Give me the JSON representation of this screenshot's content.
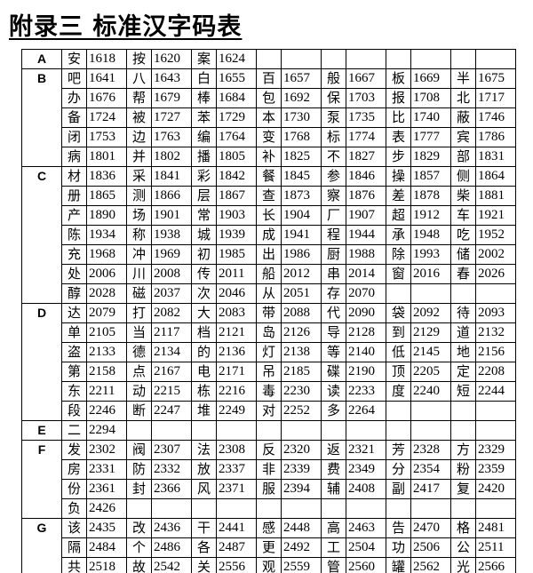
{
  "title": "附录三 标准汉字码表",
  "table": {
    "groups": [
      {
        "letter": "A",
        "rows": [
          [
            "安",
            "1618",
            "按",
            "1620",
            "案",
            "1624"
          ]
        ]
      },
      {
        "letter": "B",
        "rows": [
          [
            "吧",
            "1641",
            "八",
            "1643",
            "白",
            "1655",
            "百",
            "1657",
            "般",
            "1667",
            "板",
            "1669",
            "半",
            "1675"
          ],
          [
            "办",
            "1676",
            "帮",
            "1679",
            "棒",
            "1684",
            "包",
            "1692",
            "保",
            "1703",
            "报",
            "1708",
            "北",
            "1717"
          ],
          [
            "备",
            "1724",
            "被",
            "1727",
            "苯",
            "1729",
            "本",
            "1730",
            "泵",
            "1735",
            "比",
            "1740",
            "蔽",
            "1746"
          ],
          [
            "闭",
            "1753",
            "边",
            "1763",
            "编",
            "1764",
            "变",
            "1768",
            "标",
            "1774",
            "表",
            "1777",
            "宾",
            "1786"
          ],
          [
            "病",
            "1801",
            "并",
            "1802",
            "播",
            "1805",
            "补",
            "1825",
            "不",
            "1827",
            "步",
            "1829",
            "部",
            "1831"
          ]
        ]
      },
      {
        "letter": "C",
        "rows": [
          [
            "材",
            "1836",
            "采",
            "1841",
            "彩",
            "1842",
            "餐",
            "1845",
            "参",
            "1846",
            "操",
            "1857",
            "侧",
            "1864"
          ],
          [
            "册",
            "1865",
            "测",
            "1866",
            "层",
            "1867",
            "查",
            "1873",
            "察",
            "1876",
            "差",
            "1878",
            "柴",
            "1881"
          ],
          [
            "产",
            "1890",
            "场",
            "1901",
            "常",
            "1903",
            "长",
            "1904",
            "厂",
            "1907",
            "超",
            "1912",
            "车",
            "1921"
          ],
          [
            "陈",
            "1934",
            "称",
            "1938",
            "城",
            "1939",
            "成",
            "1941",
            "程",
            "1944",
            "承",
            "1948",
            "吃",
            "1952"
          ],
          [
            "充",
            "1968",
            "冲",
            "1969",
            "初",
            "1985",
            "出",
            "1986",
            "厨",
            "1988",
            "除",
            "1993",
            "储",
            "2002"
          ],
          [
            "处",
            "2006",
            "川",
            "2008",
            "传",
            "2011",
            "船",
            "2012",
            "串",
            "2014",
            "窗",
            "2016",
            "春",
            "2026"
          ],
          [
            "醇",
            "2028",
            "磁",
            "2037",
            "次",
            "2046",
            "从",
            "2051",
            "存",
            "2070"
          ]
        ]
      },
      {
        "letter": "D",
        "rows": [
          [
            "达",
            "2079",
            "打",
            "2082",
            "大",
            "2083",
            "带",
            "2088",
            "代",
            "2090",
            "袋",
            "2092",
            "待",
            "2093"
          ],
          [
            "单",
            "2105",
            "当",
            "2117",
            "档",
            "2121",
            "岛",
            "2126",
            "导",
            "2128",
            "到",
            "2129",
            "道",
            "2132"
          ],
          [
            "盗",
            "2133",
            "德",
            "2134",
            "的",
            "2136",
            "灯",
            "2138",
            "等",
            "2140",
            "低",
            "2145",
            "地",
            "2156"
          ],
          [
            "第",
            "2158",
            "点",
            "2167",
            "电",
            "2171",
            "吊",
            "2185",
            "碟",
            "2190",
            "顶",
            "2205",
            "定",
            "2208"
          ],
          [
            "东",
            "2211",
            "动",
            "2215",
            "栋",
            "2216",
            "毒",
            "2230",
            "读",
            "2233",
            "度",
            "2240",
            "短",
            "2244"
          ],
          [
            "段",
            "2246",
            "断",
            "2247",
            "堆",
            "2249",
            "对",
            "2252",
            "多",
            "2264"
          ]
        ]
      },
      {
        "letter": "E",
        "rows": [
          [
            "二",
            "2294"
          ]
        ]
      },
      {
        "letter": "F",
        "rows": [
          [
            "发",
            "2302",
            "阀",
            "2307",
            "法",
            "2308",
            "反",
            "2320",
            "返",
            "2321",
            "芳",
            "2328",
            "方",
            "2329"
          ],
          [
            "房",
            "2331",
            "防",
            "2332",
            "放",
            "2337",
            "非",
            "2339",
            "费",
            "2349",
            "分",
            "2354",
            "粉",
            "2359"
          ],
          [
            "份",
            "2361",
            "封",
            "2366",
            "风",
            "2371",
            "服",
            "2394",
            "辅",
            "2408",
            "副",
            "2417",
            "复",
            "2420"
          ],
          [
            "负",
            "2426"
          ]
        ]
      },
      {
        "letter": "G",
        "rows": [
          [
            "该",
            "2435",
            "改",
            "2436",
            "干",
            "2441",
            "感",
            "2448",
            "高",
            "2463",
            "告",
            "2470",
            "格",
            "2481"
          ],
          [
            "隔",
            "2484",
            "个",
            "2486",
            "各",
            "2487",
            "更",
            "2492",
            "工",
            "2504",
            "功",
            "2506",
            "公",
            "2511"
          ],
          [
            "共",
            "2518",
            "故",
            "2542",
            "关",
            "2556",
            "观",
            "2559",
            "管",
            "2560",
            "罐",
            "2562",
            "光",
            "2566"
          ]
        ]
      }
    ]
  }
}
